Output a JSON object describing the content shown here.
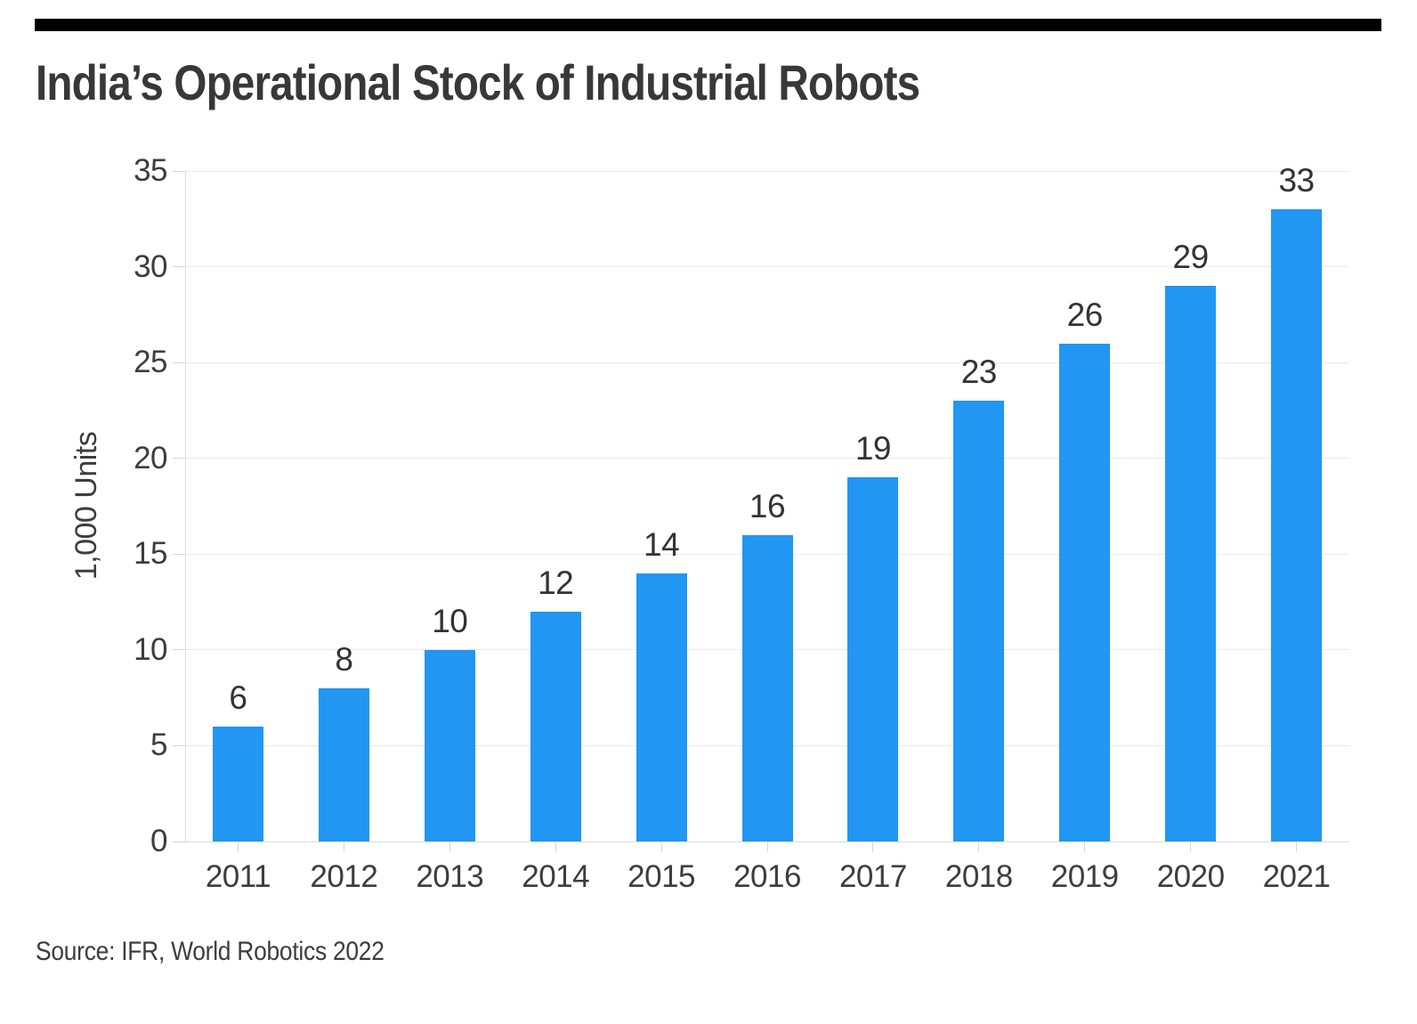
{
  "page": {
    "background": "#ffffff"
  },
  "header": {
    "title": "India’s Operational Stock of Industrial Robots"
  },
  "chart_data": {
    "type": "bar",
    "title": "India’s Operational Stock of Industrial Robots",
    "categories": [
      "2011",
      "2012",
      "2013",
      "2014",
      "2015",
      "2016",
      "2017",
      "2018",
      "2019",
      "2020",
      "2021"
    ],
    "values": [
      6,
      8,
      10,
      12,
      14,
      16,
      19,
      23,
      26,
      29,
      33
    ],
    "xlabel": "",
    "ylabel": "1,000 Units",
    "ylim": [
      0,
      35
    ],
    "ytick_step": 5,
    "yticks": [
      0,
      5,
      10,
      15,
      20,
      25,
      30,
      35
    ],
    "grid": true,
    "legend": false,
    "value_labels": true,
    "colors": {
      "bar": "#2196F3",
      "grid": "#e9e9e9",
      "axis_line": "#dcdcdc",
      "tick": "#d6d6d6",
      "text": "#3d3d3d",
      "top_rule": "#000000"
    }
  },
  "footer": {
    "source": "Source: IFR, World Robotics 2022"
  }
}
